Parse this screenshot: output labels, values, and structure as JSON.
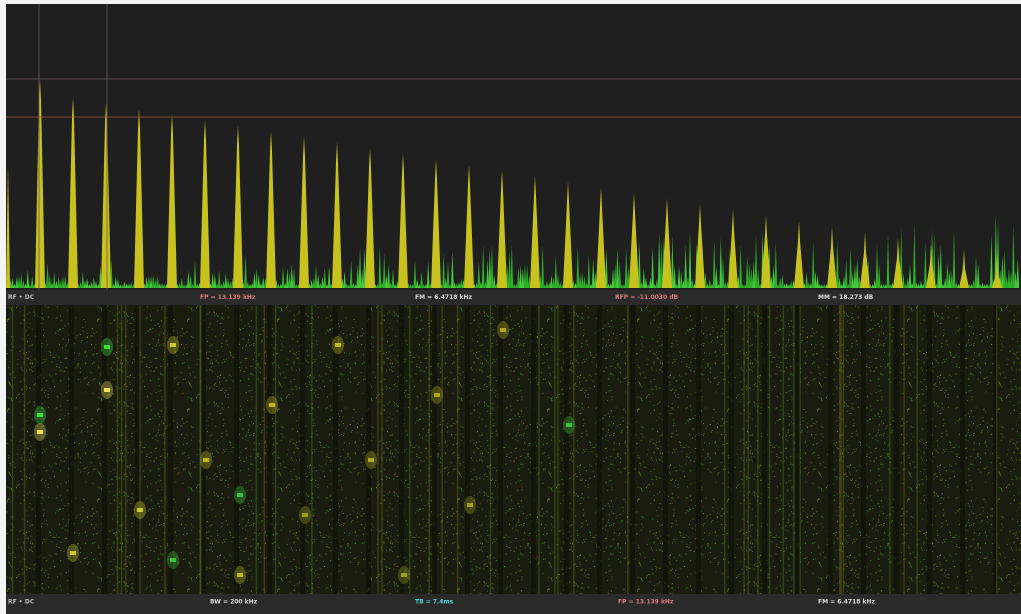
{
  "spectrum_status": [
    "RF • DC",
    "FP = 13.139 kHz",
    "FM = 6.4718 kHz",
    "RFP = -11.0030 dB",
    "MM = 18.273 dB"
  ],
  "waterfall_status": [
    "RF • DC",
    "BW = 200 kHz",
    "TB = 7.4ms",
    "FP = 13.139 kHz",
    "FM = 6.4718 kHz"
  ]
}
